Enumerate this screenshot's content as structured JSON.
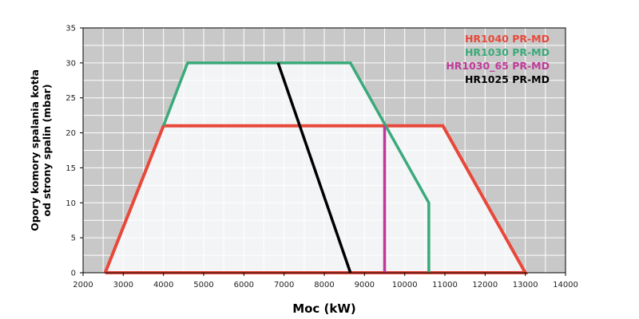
{
  "chart_data": {
    "type": "line",
    "xlabel": "Moc (kW)",
    "ylabel_lines": [
      "Opory komory spalania kotła",
      "od strony spalin (mbar)"
    ],
    "xlim": [
      2000,
      14000
    ],
    "ylim": [
      0,
      35
    ],
    "x_ticks": [
      2000,
      3000,
      4000,
      5000,
      6000,
      7000,
      8000,
      9000,
      10000,
      11000,
      12000,
      13000,
      14000
    ],
    "y_ticks": [
      0,
      5,
      10,
      15,
      20,
      25,
      30,
      35
    ],
    "x_minor_step": 500,
    "y_minor_step": 2.5,
    "grid": true,
    "legend_position": "top-right",
    "colors": {
      "plot_background": "#c8c8c8",
      "envelope_fill": "#f2f4f6",
      "grid": "#ffffff",
      "axes": "#000000"
    },
    "series": [
      {
        "name": "HR1040 PR-MD",
        "color": "#e8483a",
        "width": 4,
        "x": [
          2550,
          4000,
          10950,
          13000,
          2550
        ],
        "y": [
          0,
          21,
          21,
          0,
          0
        ]
      },
      {
        "name": "HR1030 PR-MD",
        "color": "#3aaa7a",
        "width": 3.5,
        "x": [
          4000,
          4600,
          8650,
          10600,
          10600
        ],
        "y": [
          21,
          30,
          30,
          10,
          0
        ]
      },
      {
        "name": "HR1030_65 PR-MD",
        "color": "#c0399a",
        "width": 3.5,
        "x": [
          9500,
          9500
        ],
        "y": [
          21,
          0
        ]
      },
      {
        "name": "HR1025 PR-MD",
        "color": "#000000",
        "width": 3.5,
        "x": [
          6850,
          8650
        ],
        "y": [
          30,
          0
        ]
      }
    ]
  }
}
